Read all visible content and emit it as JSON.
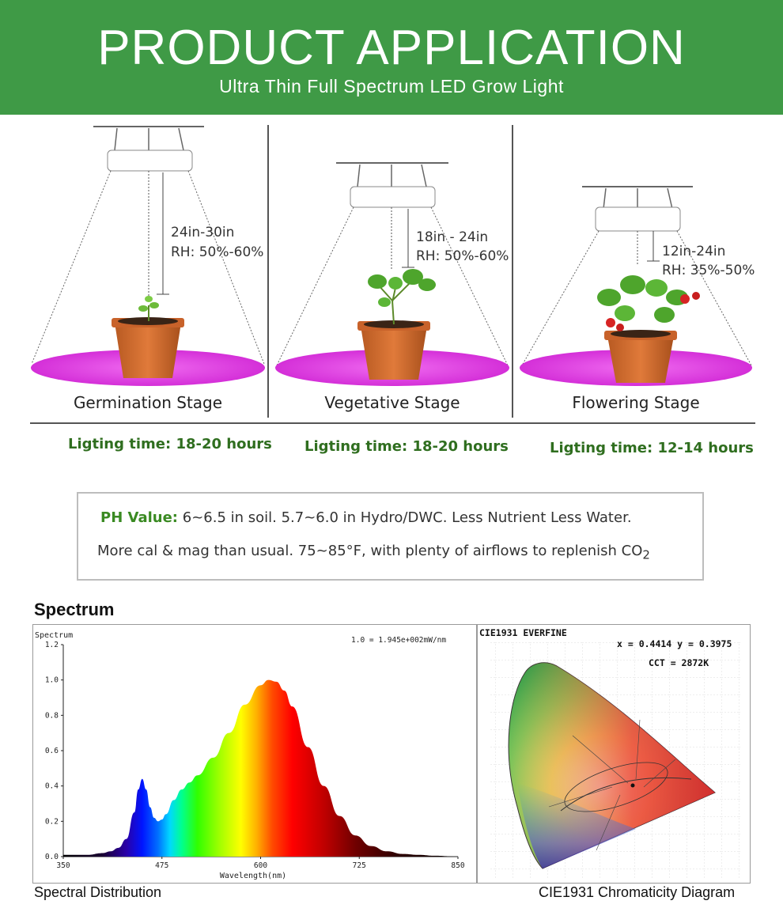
{
  "banner": {
    "title": "PRODUCT APPLICATION",
    "subtitle": "Ultra Thin Full Spectrum LED Grow Light"
  },
  "stages": [
    {
      "name": "Germination Stage",
      "distance": "24in-30in",
      "humidity": "RH: 50%-60%",
      "lighting_time": "Ligting time: 18-20 hours"
    },
    {
      "name": "Vegetative Stage",
      "distance": "18in - 24in",
      "humidity": "RH: 50%-60%",
      "lighting_time": "Ligting time: 18-20 hours"
    },
    {
      "name": "Flowering Stage",
      "distance": "12in-24in",
      "humidity": "RH: 35%-50%",
      "lighting_time": "Ligting time: 12-14 hours"
    }
  ],
  "ph_box": {
    "label": "PH Value:",
    "line1": " 6~6.5 in soil. 5.7~6.0 in Hydro/DWC. Less Nutrient Less Water.",
    "line2": "More cal & mag than usual. 75~85°F, with plenty of airflows to replenish CO",
    "line2_sub": "2"
  },
  "spectrum_section": {
    "heading": "Spectrum",
    "caption_left": "Spectral Distribution",
    "caption_right": "CIE1931 Chromaticity Diagram"
  },
  "chart_data": {
    "type": "area",
    "title": "",
    "ylabel": "Spectrum",
    "xlabel": "Wavelength(nm)",
    "scale_note": "1.0 = 1.945e+002mW/nm",
    "xlim": [
      350,
      850
    ],
    "ylim": [
      0,
      1.2
    ],
    "x_ticks": [
      "350",
      "475",
      "600",
      "725",
      "850"
    ],
    "y_ticks": [
      "0.0",
      "0.2",
      "0.4",
      "0.6",
      "0.8",
      "1.0",
      "1.2"
    ],
    "x": [
      350,
      380,
      400,
      410,
      420,
      430,
      440,
      445,
      450,
      455,
      460,
      465,
      470,
      475,
      480,
      490,
      500,
      510,
      520,
      540,
      560,
      580,
      600,
      610,
      620,
      630,
      640,
      660,
      680,
      700,
      720,
      740,
      760,
      780,
      800,
      820,
      850
    ],
    "y": [
      0.01,
      0.01,
      0.02,
      0.03,
      0.05,
      0.1,
      0.25,
      0.38,
      0.44,
      0.38,
      0.28,
      0.22,
      0.2,
      0.21,
      0.24,
      0.32,
      0.38,
      0.42,
      0.46,
      0.56,
      0.7,
      0.86,
      0.97,
      1.0,
      0.99,
      0.94,
      0.85,
      0.62,
      0.4,
      0.23,
      0.12,
      0.06,
      0.03,
      0.015,
      0.01,
      0.005,
      0.0
    ]
  },
  "cie": {
    "title": "CIE1931  EVERFINE",
    "coords": "x = 0.4414  y = 0.3975",
    "cct": "CCT = 2872K"
  },
  "colors": {
    "banner_green": "#3f9a46",
    "lighting_text": "#2f6e1f",
    "ph_label": "#3a8a22",
    "light_disc": "#e23fe4"
  }
}
